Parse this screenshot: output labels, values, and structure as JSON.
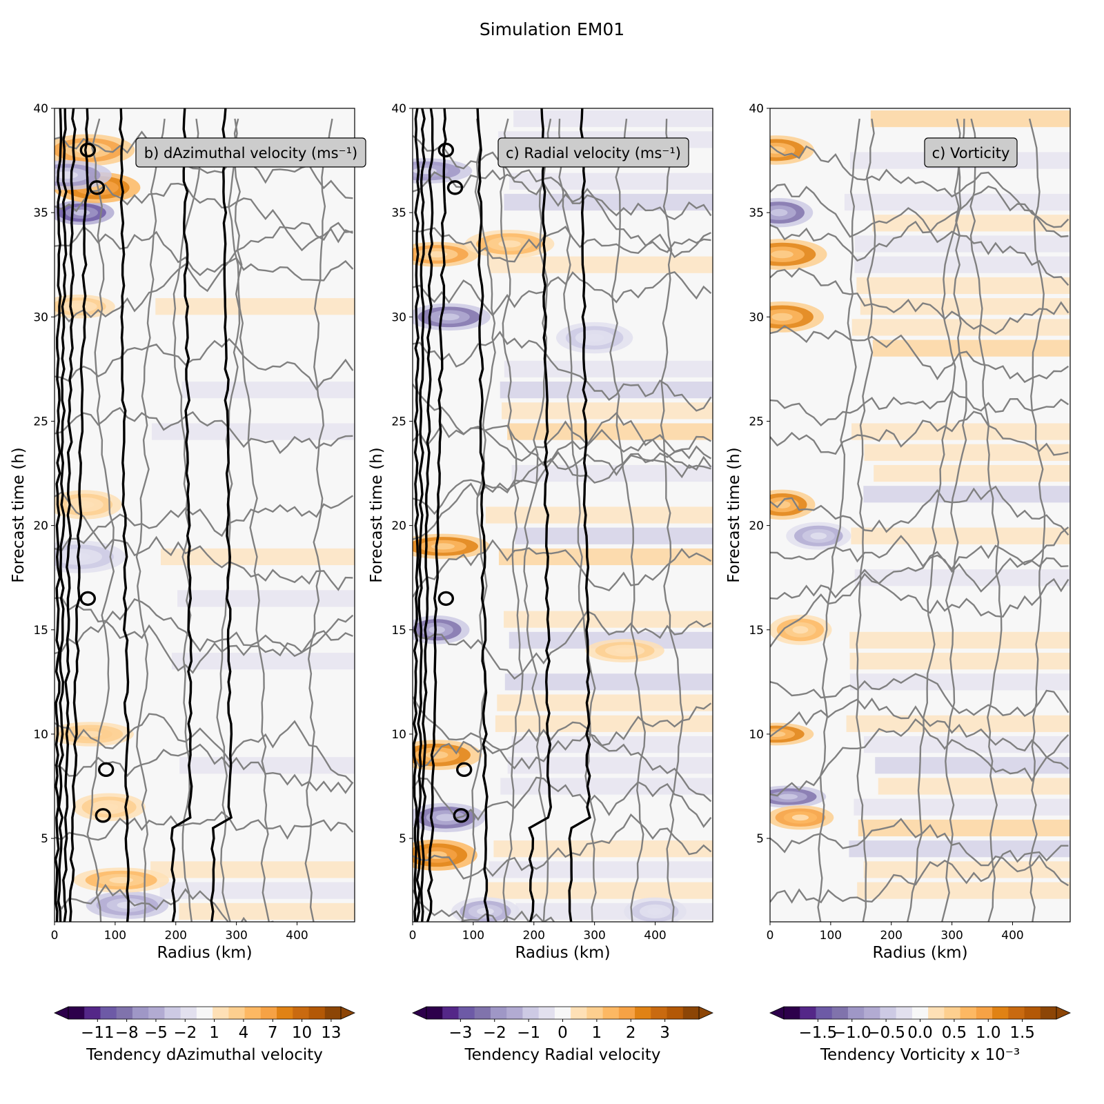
{
  "figure": {
    "title": "Simulation EM01"
  },
  "colors": {
    "purple_ramp": [
      "#2d004b",
      "#542788",
      "#6d5aa6",
      "#8073ac",
      "#9f97c6",
      "#b2abd2",
      "#cdcae4",
      "#e2e0ee"
    ],
    "neutral": "#f7f7f7",
    "orange_ramp": [
      "#fee0b6",
      "#fdcf8f",
      "#fdb863",
      "#f6a245",
      "#e08214",
      "#c96a10",
      "#b35806",
      "#8c4506"
    ],
    "contour_dark": "#000000",
    "contour_grey": "#808080"
  },
  "chart_data": [
    {
      "type": "heatmap",
      "label_box": "b) dAzimuthal velocity (ms⁻¹)",
      "xlabel": "Radius (km)",
      "ylabel": "Forecast time (h)",
      "xlim": [
        0,
        495
      ],
      "ylim": [
        1,
        40
      ],
      "xticks": [
        "0",
        "100",
        "200",
        "300",
        "400"
      ],
      "yticks": [
        "5",
        "10",
        "15",
        "20",
        "25",
        "30",
        "35",
        "40"
      ],
      "colorbar": {
        "label": "Tendency dAzimuthal velocity",
        "ticks": [
          "−11",
          "−8",
          "−5",
          "−2",
          "1",
          "4",
          "7",
          "10",
          "13"
        ],
        "range": [
          -14,
          14
        ]
      },
      "blobs": [
        {
          "r": 45,
          "t": 35,
          "v": -1.0
        },
        {
          "r": 70,
          "t": 36.2,
          "v": 0.9
        },
        {
          "r": 55,
          "t": 38,
          "v": 0.6
        },
        {
          "r": 20,
          "t": 36.8,
          "v": -0.6
        },
        {
          "r": 120,
          "t": 1.8,
          "v": -0.55
        },
        {
          "r": 110,
          "t": 3.0,
          "v": 0.45
        },
        {
          "r": 40,
          "t": 30.5,
          "v": 0.35
        },
        {
          "r": 50,
          "t": 21,
          "v": 0.35
        },
        {
          "r": 60,
          "t": 10,
          "v": 0.4
        },
        {
          "r": 40,
          "t": 18.5,
          "v": -0.3
        },
        {
          "r": 90,
          "t": 6.5,
          "v": 0.3
        }
      ]
    },
    {
      "type": "heatmap",
      "label_box": "c) Radial velocity (ms⁻¹)",
      "xlabel": "Radius (km)",
      "ylabel": "Forecast time (h)",
      "xlim": [
        0,
        495
      ],
      "ylim": [
        1,
        40
      ],
      "xticks": [
        "0",
        "100",
        "200",
        "300",
        "400"
      ],
      "yticks": [
        "5",
        "10",
        "15",
        "20",
        "25",
        "30",
        "35",
        "40"
      ],
      "colorbar": {
        "label": "Tendency Radial velocity",
        "ticks": [
          "−3",
          "−2",
          "−1",
          "0",
          "1",
          "2",
          "3"
        ],
        "range": [
          -4,
          4
        ]
      },
      "blobs": [
        {
          "r": 40,
          "t": 4.2,
          "v": 0.9
        },
        {
          "r": 55,
          "t": 6,
          "v": -0.8
        },
        {
          "r": 40,
          "t": 9,
          "v": 0.8
        },
        {
          "r": 40,
          "t": 15,
          "v": -0.8
        },
        {
          "r": 50,
          "t": 19,
          "v": 0.8
        },
        {
          "r": 60,
          "t": 30,
          "v": -0.8
        },
        {
          "r": 40,
          "t": 33,
          "v": 0.6
        },
        {
          "r": 160,
          "t": 33.5,
          "v": 0.45
        },
        {
          "r": 20,
          "t": 37,
          "v": -0.7
        },
        {
          "r": 350,
          "t": 14,
          "v": 0.3
        },
        {
          "r": 300,
          "t": 29,
          "v": -0.3
        },
        {
          "r": 120,
          "t": 1.5,
          "v": -0.5
        },
        {
          "r": 400,
          "t": 1.5,
          "v": -0.3
        }
      ]
    },
    {
      "type": "heatmap",
      "label_box": "c) Vorticity",
      "xlabel": "Radius (km)",
      "ylabel": "Forecast time (h)",
      "xlim": [
        0,
        495
      ],
      "ylim": [
        1,
        40
      ],
      "xticks": [
        "0",
        "100",
        "200",
        "300",
        "400"
      ],
      "yticks": [
        "5",
        "10",
        "15",
        "20",
        "25",
        "30",
        "35",
        "40"
      ],
      "colorbar": {
        "label": "Tendency Vorticity x 10⁻³",
        "ticks": [
          "−1.5",
          "−1.0",
          "−0.5",
          "0.0",
          "0.5",
          "1.0",
          "1.5"
        ],
        "range": [
          -2,
          2
        ]
      },
      "blobs": [
        {
          "r": 10,
          "t": 38,
          "v": 0.8
        },
        {
          "r": 15,
          "t": 35,
          "v": -0.8
        },
        {
          "r": 20,
          "t": 33,
          "v": 0.8
        },
        {
          "r": 20,
          "t": 30,
          "v": 0.8
        },
        {
          "r": 20,
          "t": 21,
          "v": 0.8
        },
        {
          "r": 80,
          "t": 19.5,
          "v": -0.5
        },
        {
          "r": 10,
          "t": 10,
          "v": 0.8
        },
        {
          "r": 30,
          "t": 7,
          "v": -0.8
        },
        {
          "r": 50,
          "t": 6,
          "v": 0.7
        },
        {
          "r": 50,
          "t": 15,
          "v": 0.5
        }
      ]
    }
  ]
}
